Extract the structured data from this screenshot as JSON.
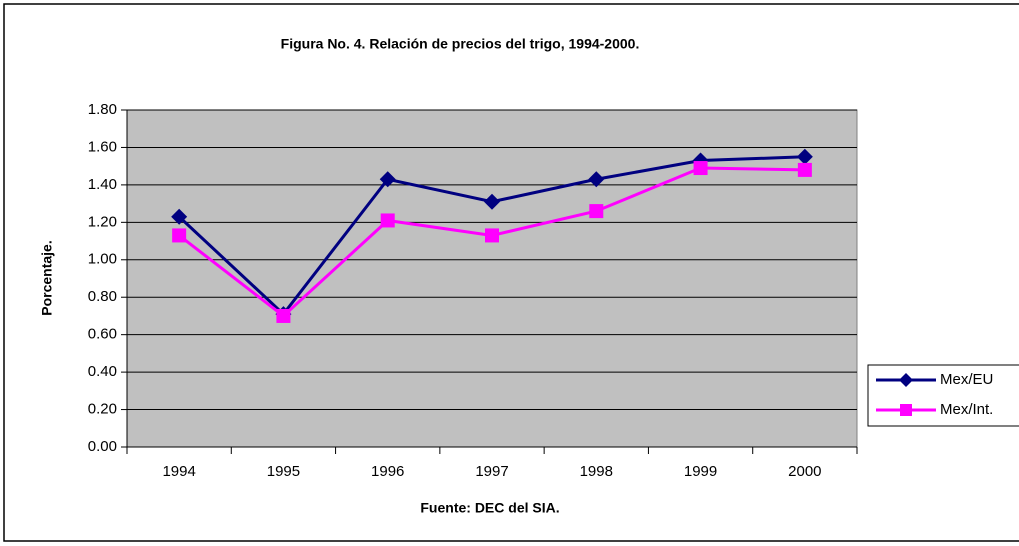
{
  "chart_data": {
    "type": "line",
    "title": "Figura No. 4. Relación de precios del trigo, 1994-2000.",
    "x_label": "Fuente: DEC del SIA.",
    "y_label": "Porcentaje.",
    "categories": [
      "1994",
      "1995",
      "1996",
      "1997",
      "1998",
      "1999",
      "2000"
    ],
    "series": [
      {
        "name": "Mex/EU",
        "color": "#000080",
        "marker": "diamond",
        "values": [
          1.23,
          0.71,
          1.43,
          1.31,
          1.43,
          1.53,
          1.55
        ]
      },
      {
        "name": "Mex/Int.",
        "color": "#ff00ff",
        "marker": "square",
        "values": [
          1.13,
          0.7,
          1.21,
          1.13,
          1.26,
          1.49,
          1.48
        ]
      }
    ],
    "ylim": [
      0,
      1.8
    ],
    "yticks": [
      {
        "value": 0,
        "label": "0.00"
      },
      {
        "value": 0.2,
        "label": "0.20"
      },
      {
        "value": 0.4,
        "label": "0.40"
      },
      {
        "value": 0.6,
        "label": "0.60"
      },
      {
        "value": 0.8,
        "label": "0.80"
      },
      {
        "value": 1,
        "label": "1.00"
      },
      {
        "value": 1.2,
        "label": "1.20"
      },
      {
        "value": 1.4,
        "label": "1.40"
      },
      {
        "value": 1.6,
        "label": "1.60"
      },
      {
        "value": 1.8,
        "label": "1.80"
      }
    ],
    "grid": true,
    "plot_background": "#c0c0c0",
    "legend": "right"
  }
}
